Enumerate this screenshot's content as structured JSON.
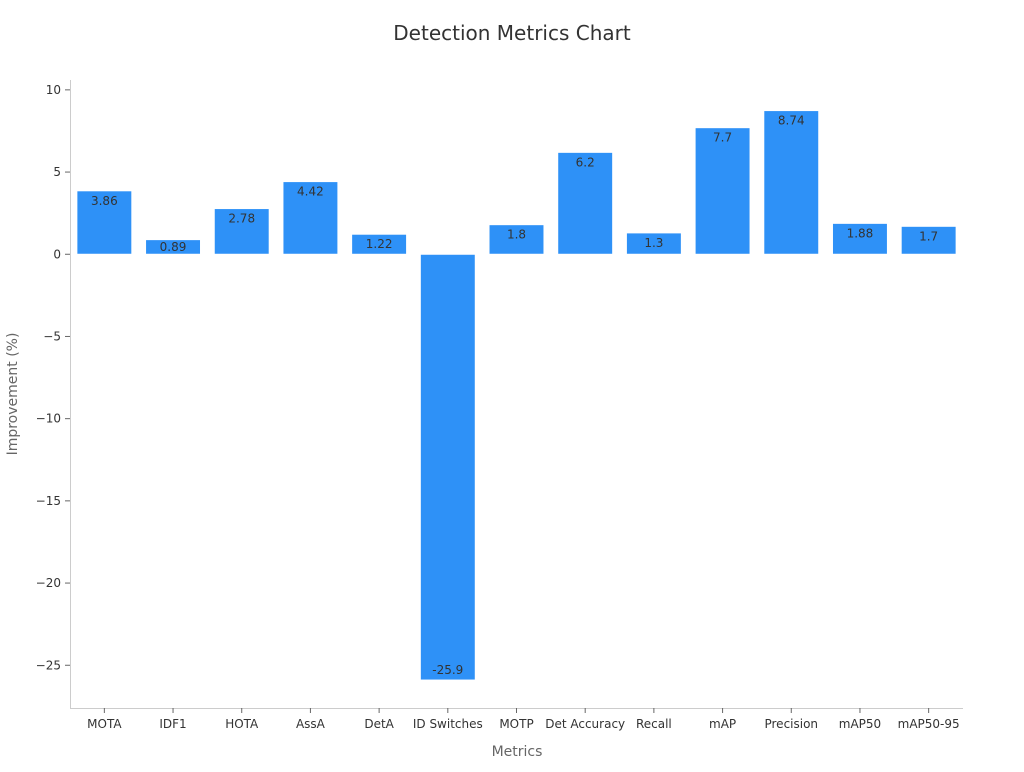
{
  "chart_data": {
    "type": "bar",
    "title": "Detection Metrics Chart",
    "xlabel": "Metrics",
    "ylabel": "Improvement (%)",
    "categories": [
      "MOTA",
      "IDF1",
      "HOTA",
      "AssA",
      "DetA",
      "ID Switches",
      "MOTP",
      "Det Accuracy",
      "Recall",
      "mAP",
      "Precision",
      "mAP50",
      "mAP50-95"
    ],
    "values": [
      3.86,
      0.89,
      2.78,
      4.42,
      1.22,
      -25.9,
      1.8,
      6.2,
      1.3,
      7.7,
      8.74,
      1.88,
      1.7
    ],
    "data_labels": [
      "3.86",
      "0.89",
      "2.78",
      "4.42",
      "1.22",
      "-25.9",
      "1.8",
      "6.2",
      "1.3",
      "7.7",
      "8.74",
      "1.88",
      "1.7"
    ],
    "yticks": [
      10,
      5,
      0,
      -5,
      -10,
      -15,
      -20,
      -25
    ],
    "ytick_labels": [
      "10",
      "5",
      "0",
      "−5",
      "−10",
      "−15",
      "−20",
      "−25"
    ],
    "ylim": [
      -27.6,
      10.6
    ],
    "grid": false,
    "bar_color": "#2e91f7"
  }
}
